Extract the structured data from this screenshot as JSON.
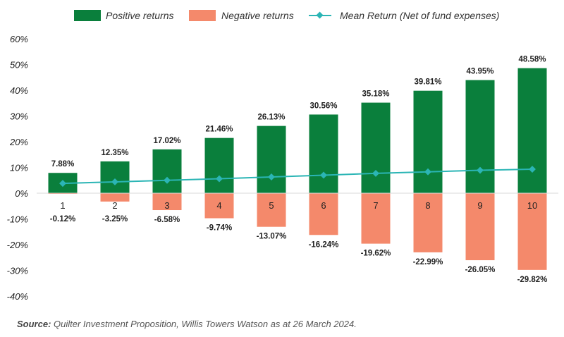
{
  "chart_data": {
    "type": "bar",
    "categories": [
      "1",
      "2",
      "3",
      "4",
      "5",
      "6",
      "7",
      "8",
      "9",
      "10"
    ],
    "series": [
      {
        "name": "Positive returns",
        "values": [
          7.88,
          12.35,
          17.02,
          21.46,
          26.13,
          30.56,
          35.18,
          39.81,
          43.95,
          48.58
        ],
        "labels": [
          "7.88%",
          "12.35%",
          "17.02%",
          "21.46%",
          "26.13%",
          "30.56%",
          "35.18%",
          "39.81%",
          "43.95%",
          "48.58%"
        ]
      },
      {
        "name": "Negative returns",
        "values": [
          -0.12,
          -3.25,
          -6.58,
          -9.74,
          -13.07,
          -16.24,
          -19.62,
          -22.99,
          -26.05,
          -29.82
        ],
        "labels": [
          "-0.12%",
          "-3.25%",
          "-6.58%",
          "-9.74%",
          "-13.07%",
          "-16.24%",
          "-19.62%",
          "-22.99%",
          "-26.05%",
          "-29.82%"
        ]
      },
      {
        "name": "Mean Return (Net of fund expenses)",
        "type": "line",
        "values": [
          3.8,
          4.4,
          5.0,
          5.6,
          6.3,
          7.0,
          7.7,
          8.3,
          8.9,
          9.3
        ]
      }
    ],
    "ylim": [
      -40,
      60
    ],
    "yticks": [
      "60%",
      "50%",
      "40%",
      "30%",
      "20%",
      "10%",
      "0%",
      "-10%",
      "-20%",
      "-30%",
      "-40%"
    ],
    "ytick_values": [
      60,
      50,
      40,
      30,
      20,
      10,
      0,
      -10,
      -20,
      -30,
      -40
    ],
    "legend_position": "top",
    "grid": false,
    "colors": {
      "positive": "#0a7f3c",
      "negative": "#f4896b",
      "mean": "#2bb5b5"
    }
  },
  "source": {
    "label": "Source:",
    "text": "Quilter Investment Proposition, Willis Towers Watson as at 26 March 2024."
  }
}
